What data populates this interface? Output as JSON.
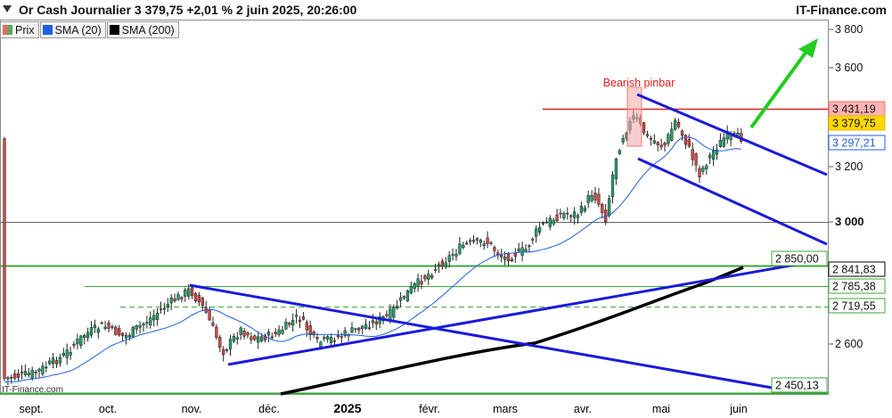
{
  "header": {
    "title": "Or Cash Journalier 3 379,75 +2,01 % 2 juin 2025, 20:26:00",
    "brand": "IT-Finance.com"
  },
  "legend": [
    {
      "label": "Prix",
      "color": "#e36b6b"
    },
    {
      "label": "SMA (20)",
      "color": "#1f5fe0"
    },
    {
      "label": "SMA (200)",
      "color": "#000000"
    }
  ],
  "watermark": "IT-Finance.com",
  "chart_data": {
    "type": "candlestick",
    "y_axis": {
      "ticks": [
        "3 800",
        "3 600",
        "3 200",
        "3 000",
        "2 600"
      ],
      "emphasized_tick": "3 000"
    },
    "x_axis": {
      "ticks": [
        "sept.",
        "oct.",
        "nov.",
        "déc.",
        "2025",
        "févr.",
        "mars",
        "avr.",
        "mai",
        "juin"
      ],
      "emphasized_tick": "2025"
    },
    "price_labels": [
      {
        "text": "3 431,19",
        "kind": "resistance",
        "color": "#ff6b6b",
        "bg": "#ffb3b3"
      },
      {
        "text": "3 379,75",
        "kind": "last-price",
        "color": "#e6b800",
        "bg": "#ffd700"
      },
      {
        "text": "3 297,21",
        "kind": "sma20",
        "color": "#1f5fe0",
        "bg": "#ffffff"
      },
      {
        "text": "2 850,00",
        "kind": "support-green",
        "color": "#3aa83a",
        "bg": "#ffffff"
      },
      {
        "text": "2 841,83",
        "kind": "sma200",
        "color": "#000000",
        "bg": "#ffffff"
      },
      {
        "text": "2 785,38",
        "kind": "support-green",
        "color": "#3aa83a",
        "bg": "#ffffff"
      },
      {
        "text": "2 719,55",
        "kind": "support-green-dashed",
        "color": "#3aa83a",
        "bg": "#ffffff"
      },
      {
        "text": "2 450,13",
        "kind": "support-green",
        "color": "#3aa83a",
        "bg": "#ffffff"
      }
    ],
    "annotation": "Bearish pinbar",
    "colors": {
      "up": "#26a069",
      "down": "#d64545",
      "sma20": "#1f5fe0",
      "sma200": "#000000",
      "channel": "#1a1adb",
      "resistance": "#e02020",
      "support": "#3aa83a",
      "arrow": "#22cc22"
    }
  }
}
